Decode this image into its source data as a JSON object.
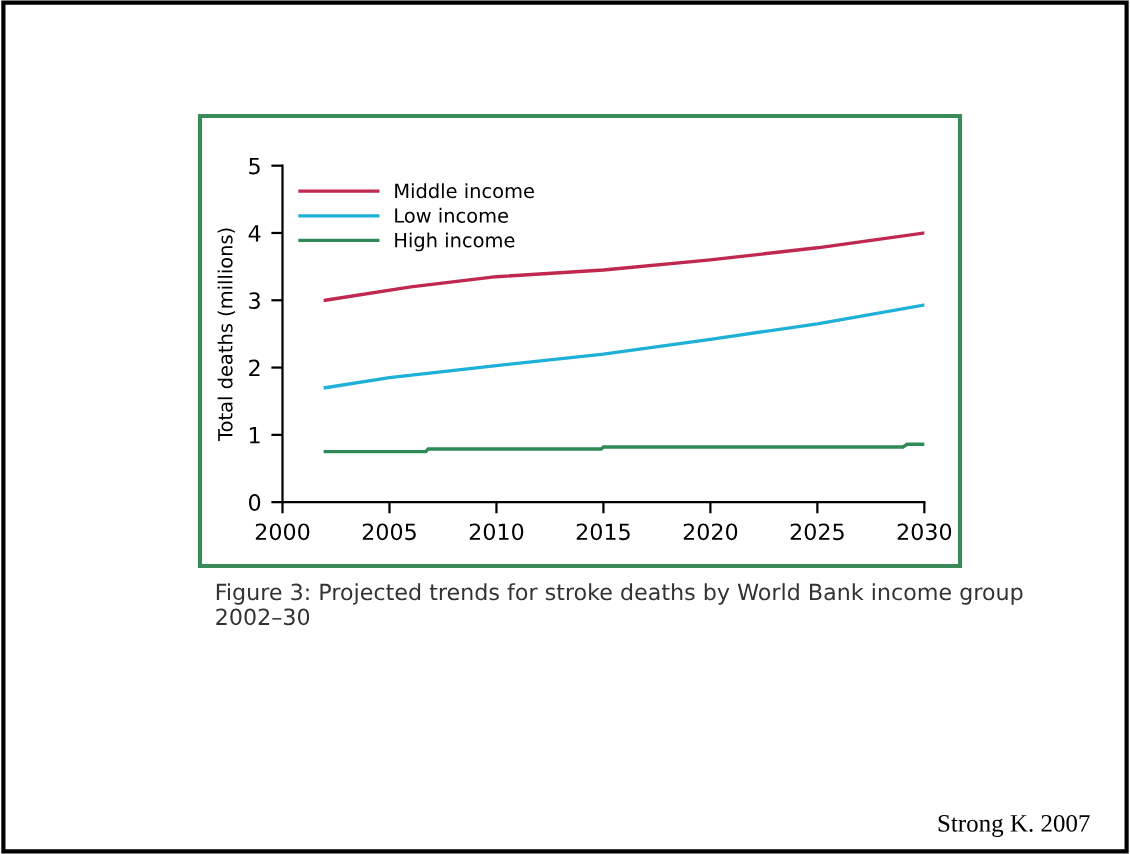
{
  "chart_data": {
    "type": "line",
    "ylabel": "Total deaths (millions)",
    "xlim": [
      2000,
      2030
    ],
    "xticks": [
      2000,
      2005,
      2010,
      2015,
      2020,
      2025,
      2030
    ],
    "ylim": [
      0,
      5
    ],
    "yticks": [
      0,
      1,
      2,
      3,
      4,
      5
    ],
    "series": [
      {
        "name": "Middle income",
        "color": "#c0284f",
        "x": [
          2002,
          2006,
          2010,
          2015,
          2020,
          2025,
          2030
        ],
        "values": [
          3.0,
          3.2,
          3.35,
          3.45,
          3.6,
          3.78,
          4.0
        ]
      },
      {
        "name": "Low income",
        "color": "#1fb0d8",
        "x": [
          2002,
          2005,
          2010,
          2015,
          2020,
          2025,
          2030
        ],
        "values": [
          1.7,
          1.85,
          2.03,
          2.2,
          2.42,
          2.65,
          2.93
        ]
      },
      {
        "name": "High income",
        "color": "#2e8b57",
        "x": [
          2002,
          2006.7,
          2006.8,
          2014.9,
          2015,
          2029,
          2029.2,
          2030
        ],
        "values": [
          0.75,
          0.75,
          0.79,
          0.79,
          0.82,
          0.82,
          0.86,
          0.86
        ]
      }
    ],
    "legend": "top left",
    "grid": false,
    "annotations": [
      "Figure 3: Projected trends for stroke deaths by World Bank income group\n2002–30",
      "Strong K. 2007"
    ]
  }
}
